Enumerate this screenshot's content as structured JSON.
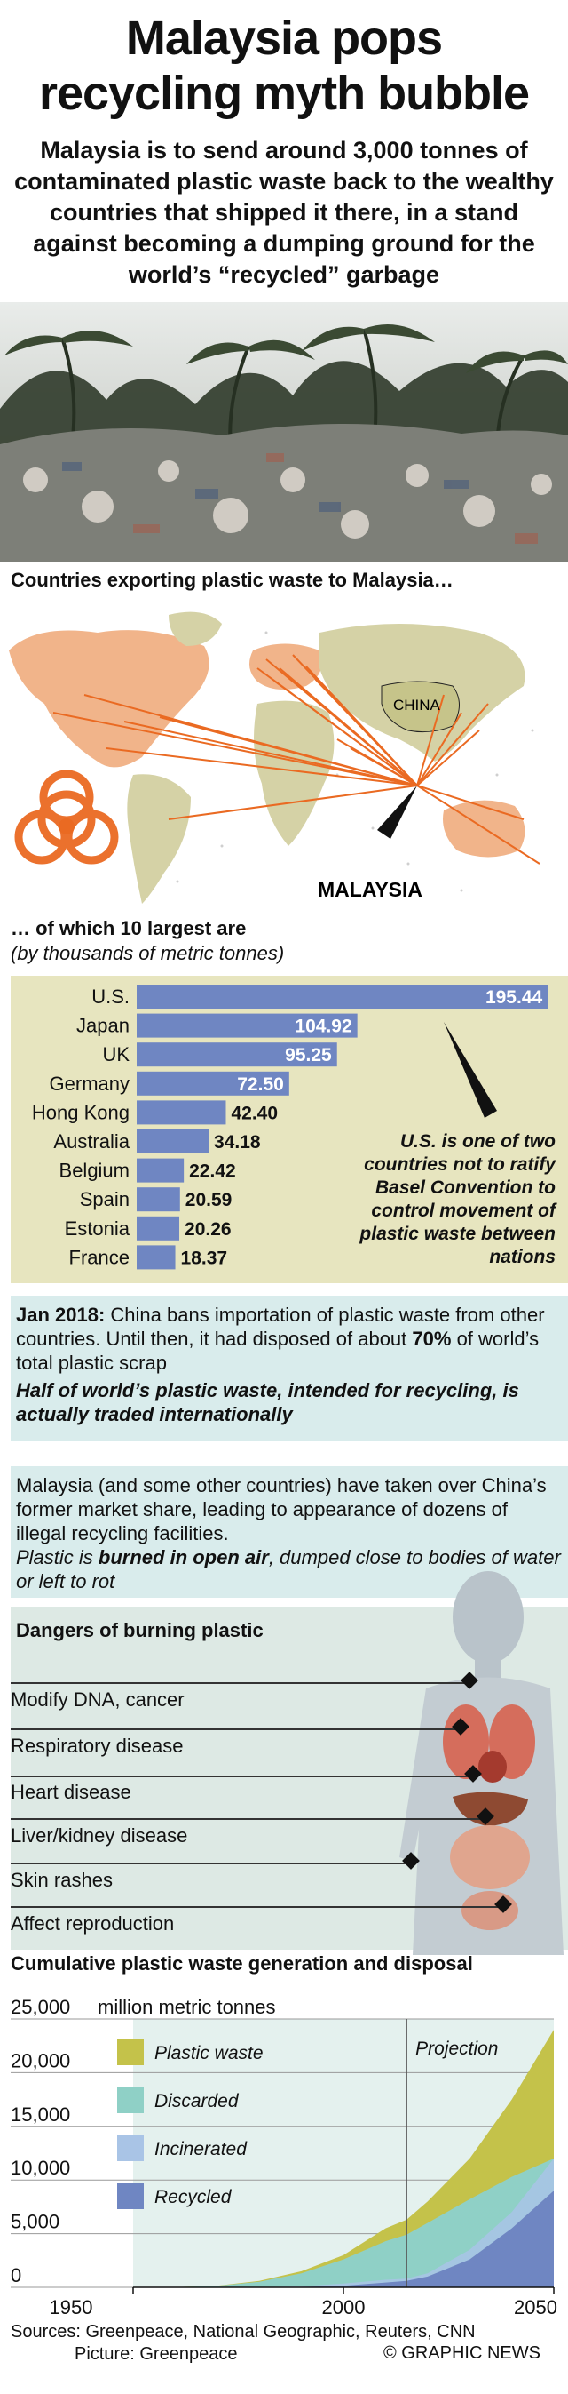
{
  "header": {
    "title_line1": "Malaysia pops",
    "title_line2": "recycling myth bubble",
    "subtitle": "Malaysia is to send around 3,000 tonnes of contaminated plastic waste back to the wealthy countries that shipped it there, in a stand against becoming a dumping ground for the world’s “recycled” garbage"
  },
  "map_section": {
    "heading": "Countries exporting plastic waste to Malaysia…",
    "china_label": "CHINA",
    "malaysia_label": "MALAYSIA"
  },
  "bar_section": {
    "heading": "… of which 10 largest are",
    "subheading": "(by thousands of metric tonnes)",
    "callout": "U.S. is one of two countries not to ratify Basel Convention to control movement of plastic waste between nations"
  },
  "colors": {
    "bar": "#6f86c2",
    "bar_panel": "#e7e5bf",
    "plastic_waste": "#c4c24a",
    "discarded": "#8fd0c6",
    "incinerated": "#a9c4e6",
    "recycled": "#6f86c2",
    "route": "#ee6a22",
    "land": "#d5d2a6"
  },
  "chart_data": [
    {
      "type": "bar",
      "orientation": "horizontal",
      "categories": [
        "U.S.",
        "Japan",
        "UK",
        "Germany",
        "Hong Kong",
        "Australia",
        "Belgium",
        "Spain",
        "Estonia",
        "France"
      ],
      "values": [
        195.44,
        104.92,
        95.25,
        72.5,
        42.4,
        34.18,
        22.42,
        20.59,
        20.26,
        18.37
      ],
      "value_labels": [
        "195.44",
        "104.92",
        "95.25",
        "72.50",
        "42.40",
        "34.18",
        "22.42",
        "20.59",
        "20.26",
        "18.37"
      ],
      "xlim": [
        0,
        200
      ]
    },
    {
      "type": "area",
      "title": "Cumulative plastic waste generation and disposal",
      "unit_label": "million metric tonnes",
      "x": [
        1950,
        1960,
        1970,
        1980,
        1990,
        2000,
        2010,
        2015,
        2020,
        2030,
        2040,
        2050
      ],
      "series": [
        {
          "name": "Plastic waste",
          "values": [
            0,
            20,
            150,
            600,
            1500,
            3000,
            5500,
            6300,
            8000,
            12000,
            17500,
            24000
          ]
        },
        {
          "name": "Discarded",
          "values": [
            0,
            15,
            130,
            520,
            1300,
            2600,
            4300,
            4900,
            6000,
            8200,
            10300,
            12000
          ]
        },
        {
          "name": "Incinerated",
          "values": [
            0,
            0,
            0,
            10,
            100,
            350,
            700,
            800,
            1300,
            3500,
            7000,
            12000
          ]
        },
        {
          "name": "Recycled",
          "values": [
            0,
            0,
            0,
            5,
            40,
            150,
            450,
            600,
            1000,
            2600,
            5500,
            9000
          ]
        }
      ],
      "y_ticks": [
        "25,000",
        "20,000",
        "15,000",
        "10,000",
        "5,000",
        "0"
      ],
      "x_ticks": [
        "1950",
        "2000",
        "2050"
      ],
      "ylim": [
        0,
        25000
      ],
      "xlim": [
        1950,
        2050
      ],
      "projection_label": "Projection",
      "projection_start": 2015
    }
  ],
  "jan_section": {
    "lead_bold": "Jan 2018:",
    "text1": " China bans importation of plastic waste from other countries. Until then, it had disposed of about ",
    "pct": "70%",
    "text2": " of world’s total plastic scrap",
    "italic": "Half of world’s plastic waste, intended for recycling, is actually traded internationally"
  },
  "malaysia_section": {
    "text": "Malaysia (and some other countries) have taken over China’s former market share, leading to appearance of dozens of illegal recycling facilities.",
    "italic1": "Plastic is ",
    "italic_bold": "burned in open air",
    "italic2": ", dumped close to bodies of water or left to rot"
  },
  "dangers": {
    "heading": "Dangers of burning plastic",
    "items": [
      "Modify DNA, cancer",
      "Respiratory disease",
      "Heart disease",
      "Liver/kidney disease",
      "Skin rashes",
      "Affect reproduction"
    ]
  },
  "footer": {
    "sources": "Sources: Greenpeace, National Geographic, Reuters, CNN",
    "picture": "Picture: Greenpeace",
    "credit": "© GRAPHIC NEWS"
  }
}
